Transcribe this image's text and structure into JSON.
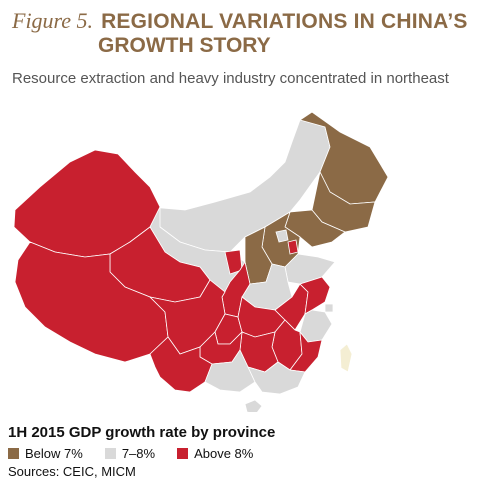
{
  "figure": {
    "label": "Figure 5.",
    "title_line1": "REGIONAL VARIATIONS IN CHINA’S",
    "title_line2": "GROWTH STORY",
    "subtitle": "Resource extraction and heavy industry concentrated in northeast"
  },
  "caption": "1H 2015 GDP growth rate by province",
  "legend": [
    {
      "label": "Below 7%",
      "color": "#8b6a46"
    },
    {
      "label": "7–8%",
      "color": "#d9d9d9"
    },
    {
      "label": "Above 8%",
      "color": "#c8202f"
    }
  ],
  "sources": "Sources: CEIC, MICM",
  "colors": {
    "below": "#8b6a46",
    "mid": "#d9d9d9",
    "above": "#c8202f",
    "taiwan": "#f4eed3"
  },
  "map_regions": [
    {
      "name": "Heilongjiang",
      "category": "below"
    },
    {
      "name": "Jilin",
      "category": "below"
    },
    {
      "name": "Liaoning",
      "category": "below"
    },
    {
      "name": "Hebei",
      "category": "below"
    },
    {
      "name": "Shanxi",
      "category": "below"
    },
    {
      "name": "Tianjin",
      "category": "above"
    },
    {
      "name": "Xinjiang",
      "category": "above"
    },
    {
      "name": "Tibet",
      "category": "above"
    },
    {
      "name": "Qinghai",
      "category": "above"
    },
    {
      "name": "Sichuan",
      "category": "above"
    },
    {
      "name": "Chongqing",
      "category": "above"
    },
    {
      "name": "Yunnan",
      "category": "above"
    },
    {
      "name": "Guizhou",
      "category": "above"
    },
    {
      "name": "Hunan",
      "category": "above"
    },
    {
      "name": "Hubei",
      "category": "above"
    },
    {
      "name": "Jiangxi",
      "category": "above"
    },
    {
      "name": "Fujian",
      "category": "above"
    },
    {
      "name": "Anhui",
      "category": "above"
    },
    {
      "name": "Jiangsu",
      "category": "above"
    },
    {
      "name": "Shaanxi",
      "category": "above"
    },
    {
      "name": "Ningxia",
      "category": "above"
    },
    {
      "name": "Inner Mongolia",
      "category": "mid"
    },
    {
      "name": "Gansu",
      "category": "mid"
    },
    {
      "name": "Henan",
      "category": "mid"
    },
    {
      "name": "Shandong",
      "category": "mid"
    },
    {
      "name": "Beijing",
      "category": "mid"
    },
    {
      "name": "Zhejiang",
      "category": "mid"
    },
    {
      "name": "Guangdong",
      "category": "mid"
    },
    {
      "name": "Guangxi",
      "category": "mid"
    },
    {
      "name": "Hainan",
      "category": "mid"
    },
    {
      "name": "Shanghai",
      "category": "mid"
    },
    {
      "name": "Taiwan",
      "category": "taiwan"
    }
  ]
}
